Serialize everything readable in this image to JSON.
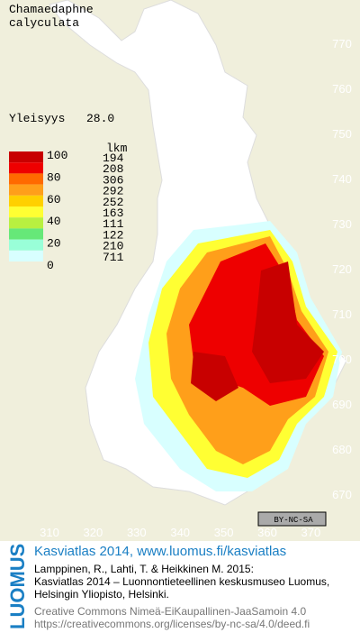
{
  "title": [
    "Chamaedaphne",
    "calyculata"
  ],
  "frequency": {
    "label": "Yleisyys",
    "value": "28.0"
  },
  "legend": {
    "count_header": "lkm",
    "class_labels": [
      "100",
      "80",
      "60",
      "40",
      "20",
      "0"
    ],
    "colors": [
      "#c80000",
      "#ee0000",
      "#ff6a00",
      "#ff9f1a",
      "#ffd000",
      "#ffff33",
      "#b8f040",
      "#66e878",
      "#99ffd8",
      "#d8ffff",
      "#ffffff"
    ],
    "counts": [
      "194",
      "208",
      "306",
      "292",
      "252",
      "163",
      "111",
      "122",
      "210",
      "711"
    ]
  },
  "grid": {
    "x_labels": [
      "310",
      "320",
      "330",
      "340",
      "350",
      "360",
      "370"
    ],
    "y_labels": [
      "770",
      "760",
      "750",
      "740",
      "730",
      "720",
      "710",
      "700",
      "690",
      "680",
      "670"
    ]
  },
  "license_badge": "BY-NC-SA",
  "footer": {
    "brand": "LUOMUS",
    "headline": "Kasviatlas 2014, www.luomus.fi/kasviatlas",
    "citation": [
      "Lamppinen, R., Lahti, T. & Heikkinen M. 2015:",
      "Kasviatlas 2014 – Luonnontieteellinen keskusmuseo Luomus,",
      "Helsingin Yliopisto, Helsinki."
    ],
    "license": [
      "Creative Commons Nimeä-EiKaupallinen-JaaSamoin 4.0",
      "https://creativecommons.org/licenses/by-nc-sa/4.0/deed.fi"
    ]
  }
}
